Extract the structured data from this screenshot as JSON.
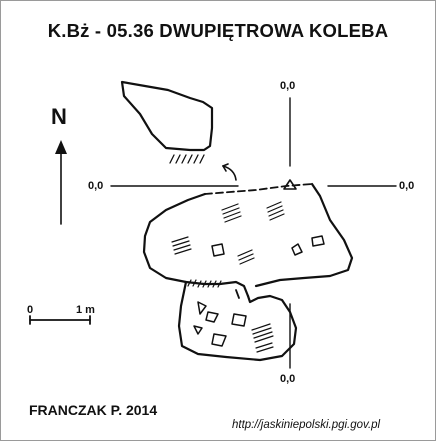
{
  "title": "K.Bż - 05.36  DWUPIĘTROWA KOLEBA",
  "coordinates": {
    "top": "0,0",
    "left": "0,0",
    "right": "0,0",
    "bottom": "0,0"
  },
  "north_label": "N",
  "scale_bar": {
    "start_label": "0",
    "end_label": "1 m"
  },
  "author": "FRANCZAK P. 2014",
  "source_url": "http://jaskiniepolski.pgi.gov.pl",
  "colors": {
    "ink": "#111111",
    "background": "#ffffff",
    "frame": "#9a9a9a"
  }
}
